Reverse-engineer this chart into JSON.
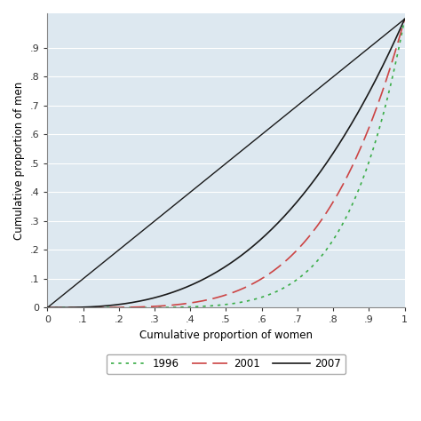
{
  "title": "",
  "xlabel": "Cumulative proportion of women",
  "ylabel": "Cumulative proportion of men",
  "xlim": [
    0,
    1
  ],
  "ylim": [
    0,
    1
  ],
  "xticks": [
    0,
    0.1,
    0.2,
    0.3,
    0.4,
    0.5,
    0.6,
    0.7,
    0.8,
    0.9,
    1.0
  ],
  "yticks": [
    0,
    0.1,
    0.2,
    0.3,
    0.4,
    0.5,
    0.6,
    0.7,
    0.8,
    0.9
  ],
  "xticklabels": [
    "0",
    ".1",
    ".2",
    ".3",
    ".4",
    ".5",
    ".6",
    ".7",
    ".8",
    ".9",
    "1"
  ],
  "yticklabels": [
    "0",
    ".1",
    ".2",
    ".3",
    ".4",
    ".5",
    ".6",
    ".7",
    ".8",
    ".9"
  ],
  "background_color": "#dde8f0",
  "curve_1996_color": "#3aad47",
  "curve_2001_color": "#cc4444",
  "curve_2007_color": "#1a1a1a",
  "diagonal_color": "#1a1a1a",
  "curve_1996_power": 6.5,
  "curve_2001_power": 4.5,
  "curve_2007_power": 2.8
}
